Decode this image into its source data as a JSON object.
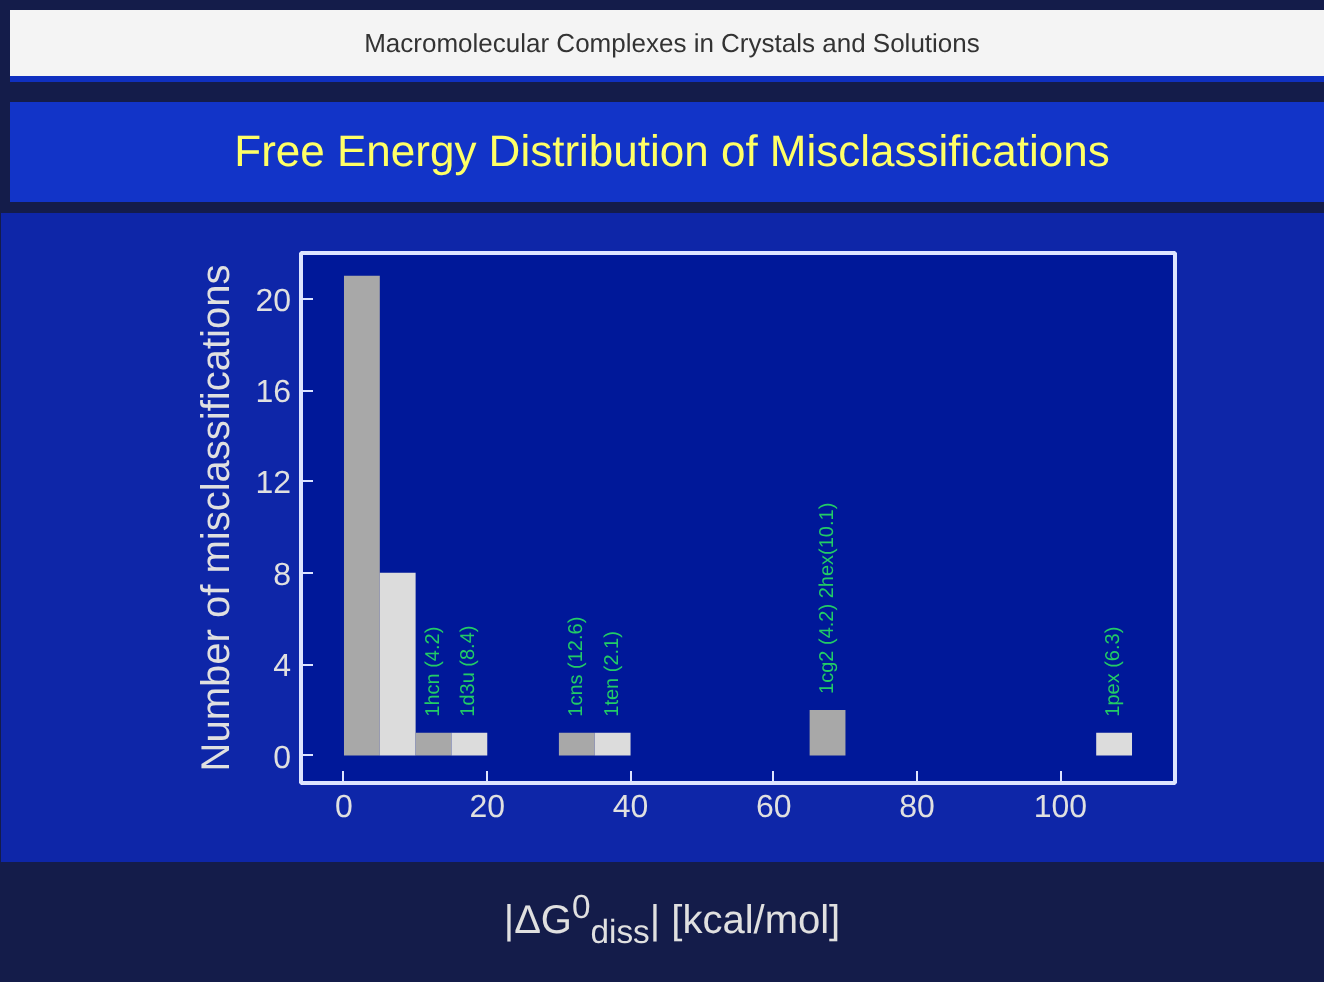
{
  "chart_data": {
    "type": "histogram",
    "title": "Free Energy Distribution of Misclassifications",
    "xlabel": "|ΔG$^{0}$$_{diss}$| [kcal/mol]",
    "ylabel": "Number of misclassifications",
    "bins": [
      0,
      5,
      10,
      15,
      20,
      25,
      30,
      35,
      40,
      45,
      50,
      55,
      60,
      65,
      70,
      75,
      80,
      85,
      90,
      95,
      100,
      105,
      110
    ],
    "values": [
      21,
      8,
      1,
      1,
      0,
      0,
      1,
      1,
      0,
      0,
      0,
      0,
      0,
      2,
      0,
      0,
      0,
      0,
      0,
      0,
      0,
      1
    ],
    "colors": [
      "#a8a8a8",
      "#dcdcdc",
      "#a8a8a8",
      "#dcdcdc",
      "#a8a8a8",
      "#dcdcdc",
      "#a8a8a8",
      "#dcdcdc",
      "#a8a8a8",
      "#dcdcdc",
      "#a8a8a8",
      "#dcdcdc",
      "#a8a8a8",
      "#a8a8a8",
      "#a8a8a8",
      "#dcdcdc",
      "#a8a8a8",
      "#dcdcdc",
      "#a8a8a8",
      "#dcdcdc",
      "#a8a8a8",
      "#dcdcdc"
    ],
    "xlim": [
      -6,
      116
    ],
    "xticks": [
      0,
      20,
      40,
      60,
      80,
      100
    ],
    "ylim": [
      -1.2,
      22
    ],
    "yticks": [
      0,
      4,
      8,
      12,
      16,
      20
    ],
    "grid": false,
    "annotations": [
      "Macromolecular Complexes in Crystals and Solutions",
      {
        "text": "1hcn (4.2)",
        "x": 12.5,
        "y": 1
      },
      {
        "text": "1d3u (8.4)",
        "x": 17.5,
        "y": 1
      },
      {
        "text": "1cns (12.6)",
        "x": 32.5,
        "y": 1
      },
      {
        "text": "1ten (2.1)",
        "x": 37.5,
        "y": 1
      },
      {
        "text": "1cg2 (4.2)  2hex(10.1)",
        "x": 67.5,
        "y": 2
      },
      {
        "text": "1pex (6.3)",
        "x": 107.5,
        "y": 1
      }
    ]
  }
}
